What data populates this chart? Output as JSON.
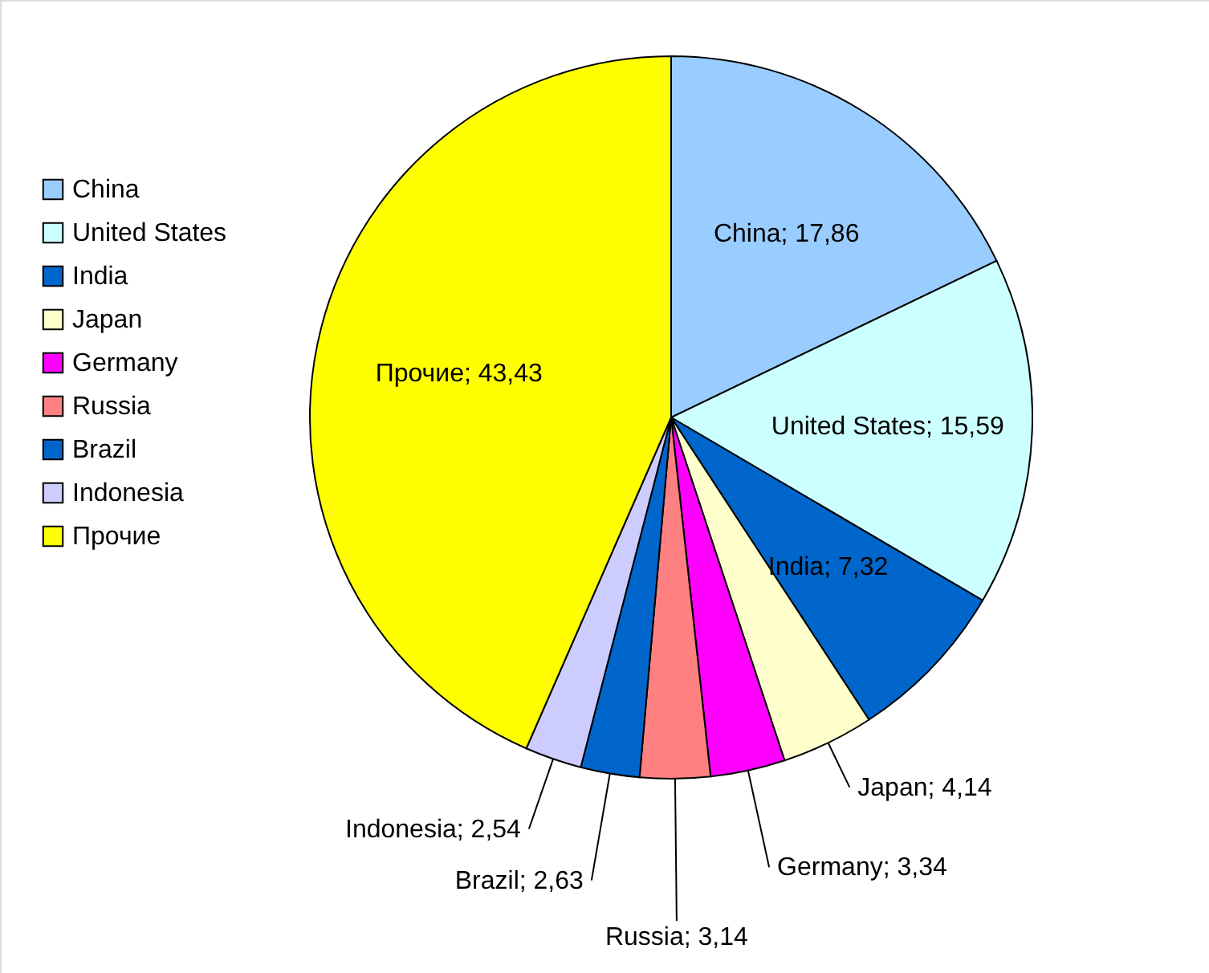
{
  "chart_data": {
    "type": "pie",
    "categories": [
      "China",
      "United States",
      "India",
      "Japan",
      "Germany",
      "Russia",
      "Brazil",
      "Indonesia",
      "Прочие"
    ],
    "values": [
      17.86,
      15.59,
      7.32,
      4.14,
      3.34,
      3.14,
      2.63,
      2.54,
      43.43
    ],
    "colors": [
      "#99ccff",
      "#ccffff",
      "#0066cc",
      "#ffffcc",
      "#ff00ff",
      "#ff8080",
      "#0066cc",
      "#ccccff",
      "#ffff00"
    ],
    "value_labels": [
      "China; 17,86",
      "United States; 15,59",
      "India; 7,32",
      "Japan; 4,14",
      "Germany; 3,34",
      "Russia; 3,14",
      "Brazil; 2,63",
      "Indonesia; 2,54",
      "Прочие; 43,43"
    ],
    "legend": "left"
  }
}
